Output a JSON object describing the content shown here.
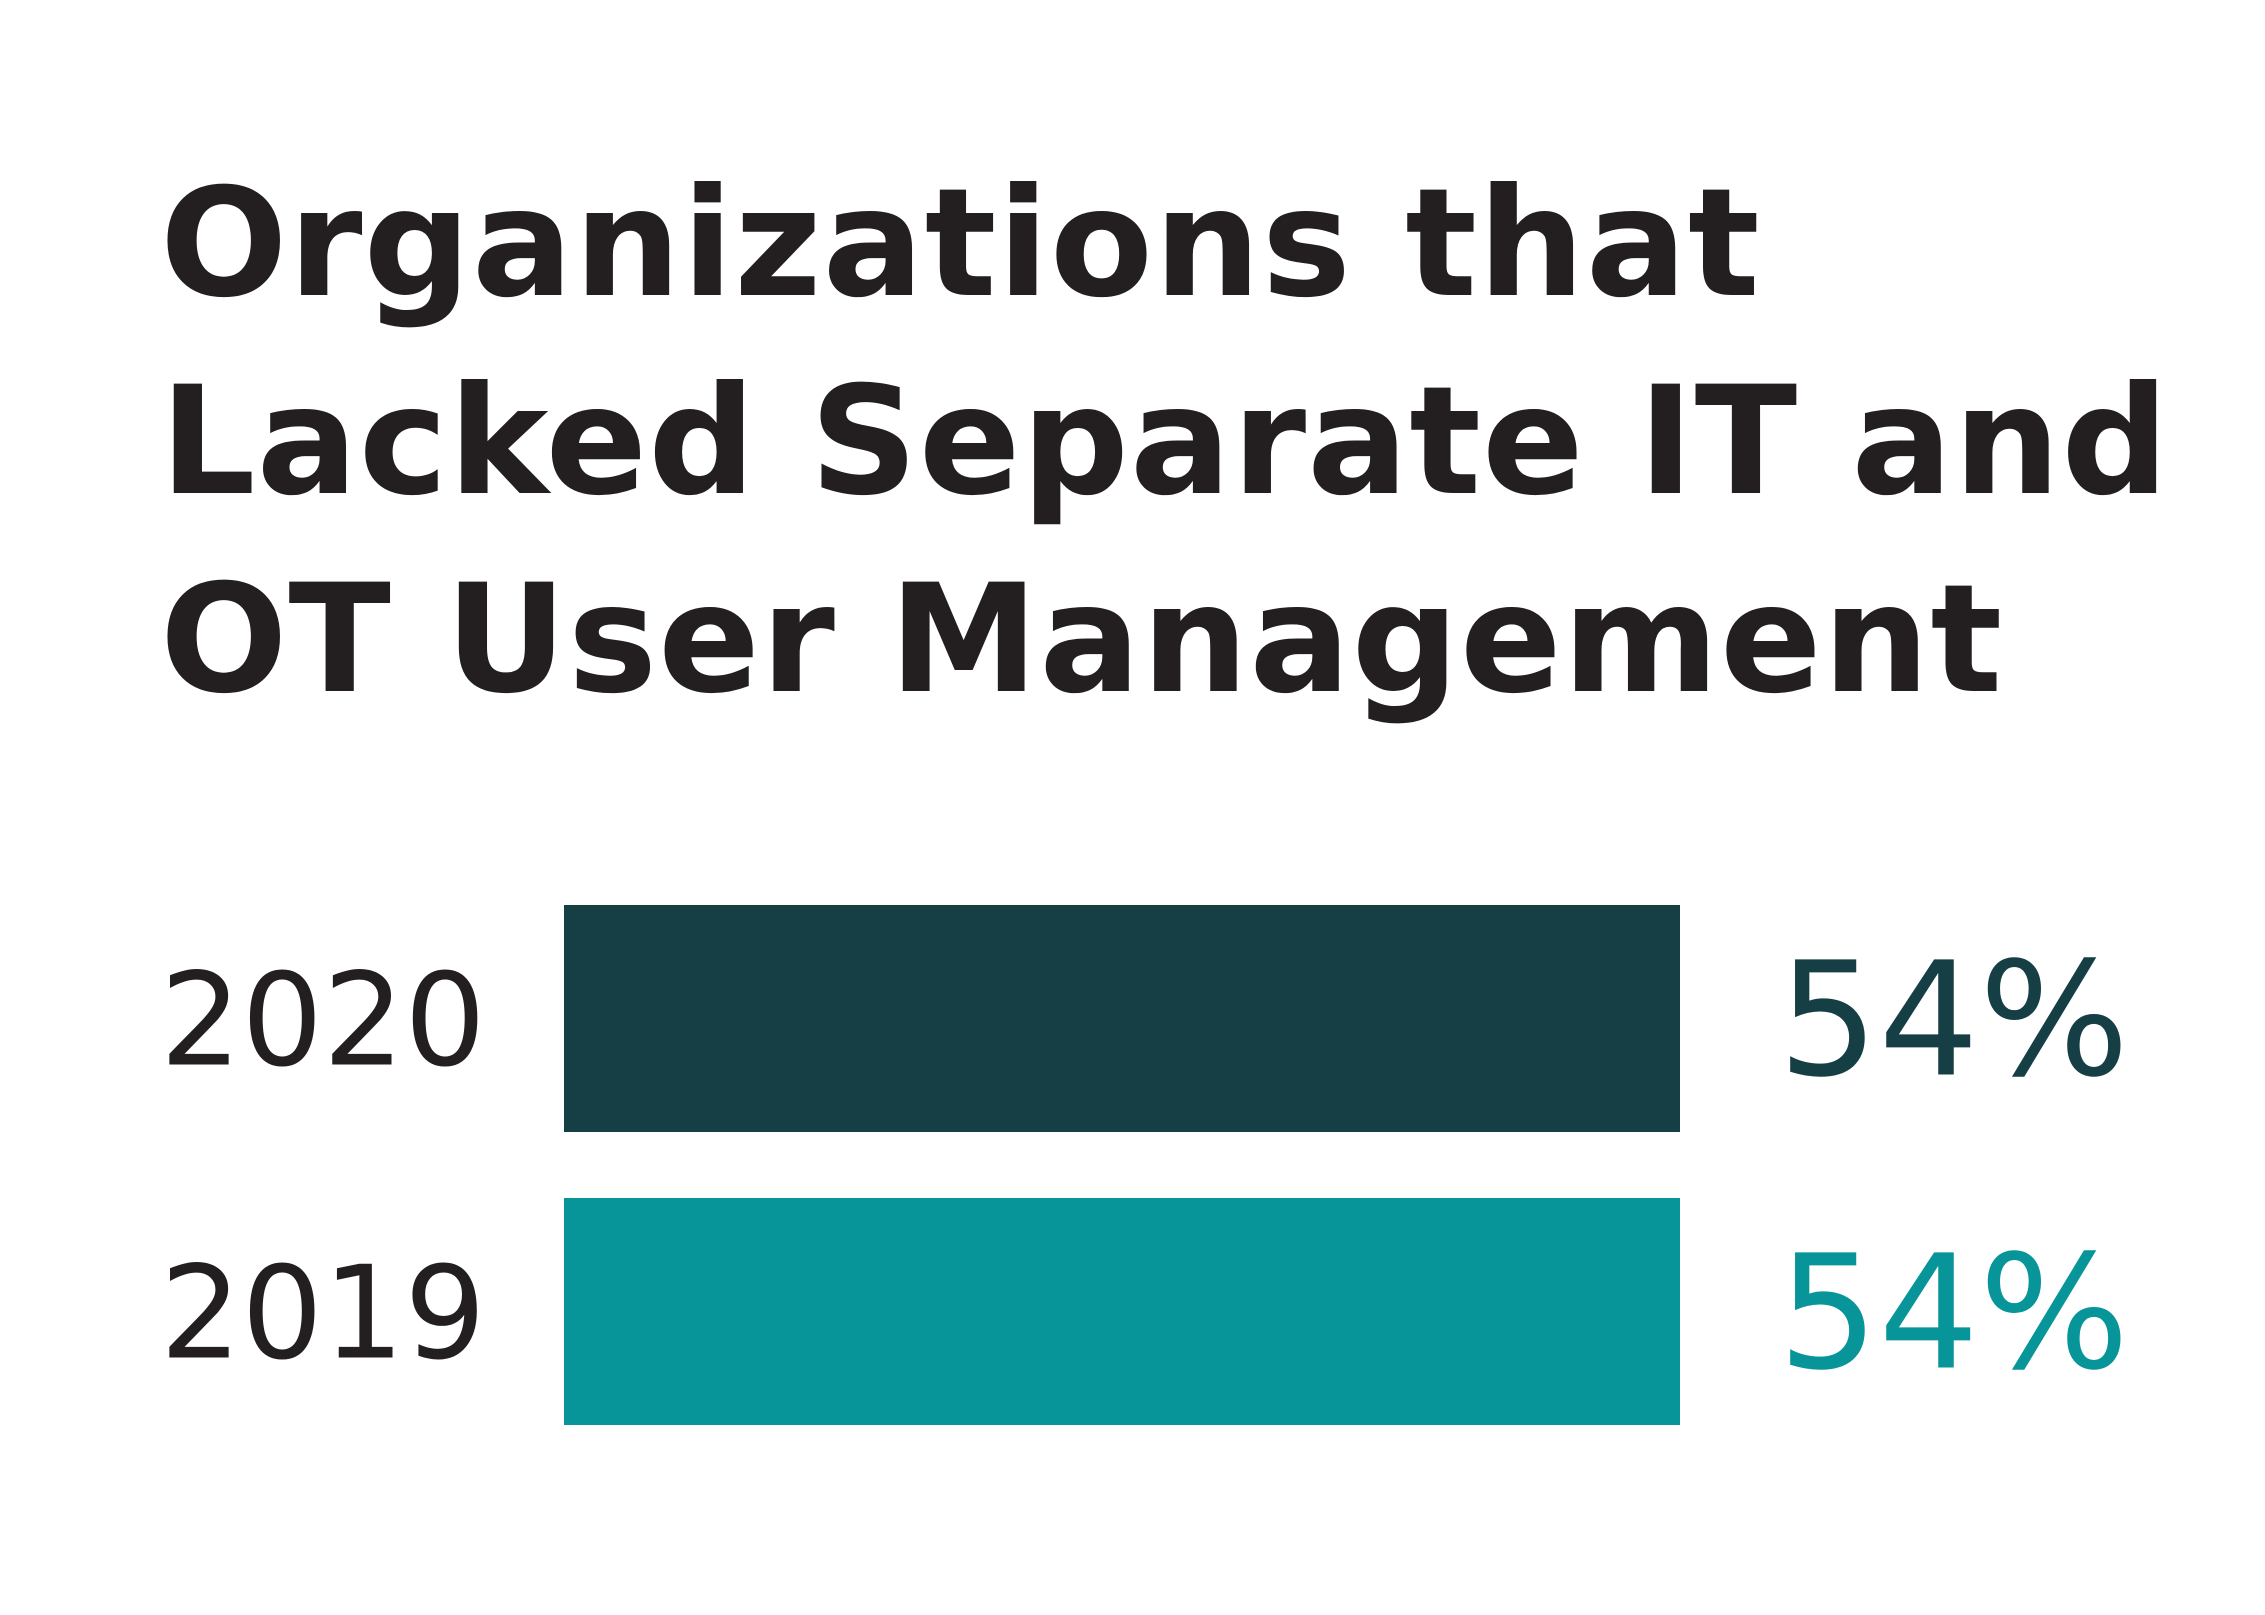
{
  "chart_data": {
    "type": "bar",
    "orientation": "horizontal",
    "title": "Organizations that Lacked Separate IT and OT User Management",
    "categories": [
      "2020",
      "2019"
    ],
    "values": [
      54,
      54
    ],
    "value_labels": [
      "54%",
      "54%"
    ],
    "colors": [
      "#153f45",
      "#07959a"
    ],
    "xlim": [
      0,
      54
    ],
    "grid": false,
    "legend": "none"
  }
}
